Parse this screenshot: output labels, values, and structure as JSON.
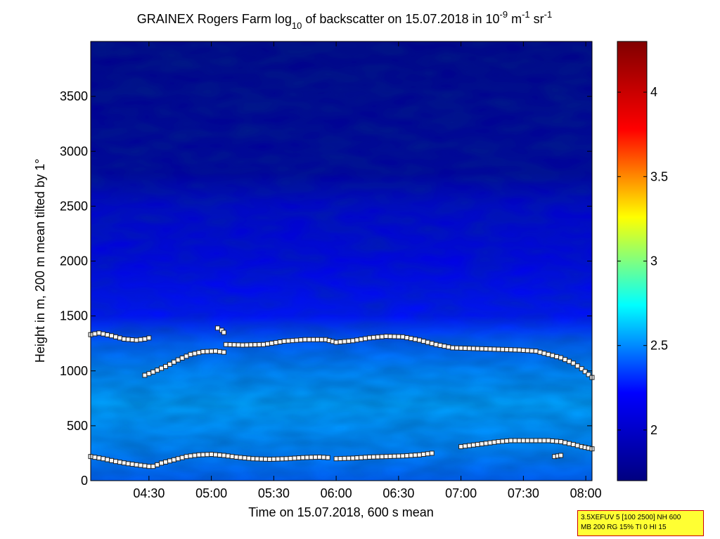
{
  "chart_data": {
    "type": "heatmap",
    "title_parts": {
      "prefix": "GRAINEX Rogers Farm log",
      "log_sub": "10",
      "middle": " of backscatter on 15.07.2018 in 10",
      "exp1": "-9",
      "m_unit": " m",
      "exp2": "-1",
      "sr_unit": " sr",
      "exp3": "-1"
    },
    "xlabel": "Time on 15.07.2018, 600 s mean",
    "ylabel": "Height in m, 200 m mean tilted by 1°",
    "x_unit": "minutes of day",
    "xlim": [
      242,
      483
    ],
    "ylim": [
      0,
      4000
    ],
    "x_ticks": [
      {
        "value": 270,
        "label": "04:30"
      },
      {
        "value": 300,
        "label": "05:00"
      },
      {
        "value": 330,
        "label": "05:30"
      },
      {
        "value": 360,
        "label": "06:00"
      },
      {
        "value": 390,
        "label": "06:30"
      },
      {
        "value": 420,
        "label": "07:00"
      },
      {
        "value": 450,
        "label": "07:30"
      },
      {
        "value": 480,
        "label": "08:00"
      }
    ],
    "y_ticks": [
      {
        "value": 0,
        "label": "0"
      },
      {
        "value": 500,
        "label": "500"
      },
      {
        "value": 1000,
        "label": "1000"
      },
      {
        "value": 1500,
        "label": "1500"
      },
      {
        "value": 2000,
        "label": "2000"
      },
      {
        "value": 2500,
        "label": "2500"
      },
      {
        "value": 3000,
        "label": "3000"
      },
      {
        "value": 3500,
        "label": "3500"
      }
    ],
    "colorbar": {
      "range": [
        1.7,
        4.3
      ],
      "ticks": [
        {
          "value": 2,
          "label": "2"
        },
        {
          "value": 2.5,
          "label": "2.5"
        },
        {
          "value": 3,
          "label": "3"
        },
        {
          "value": 3.5,
          "label": "3.5"
        },
        {
          "value": 4,
          "label": "4"
        }
      ],
      "colormap": [
        "#000080",
        "#0000ff",
        "#00ffff",
        "#ffff00",
        "#ff0000",
        "#800000"
      ]
    },
    "field_profile": [
      {
        "h": 0,
        "v": 2.42
      },
      {
        "h": 300,
        "v": 2.5
      },
      {
        "h": 700,
        "v": 2.55
      },
      {
        "h": 1000,
        "v": 2.5
      },
      {
        "h": 1250,
        "v": 2.42
      },
      {
        "h": 1500,
        "v": 2.25
      },
      {
        "h": 2000,
        "v": 2.12
      },
      {
        "h": 2500,
        "v": 2.02
      },
      {
        "h": 2800,
        "v": 1.82
      },
      {
        "h": 4000,
        "v": 1.74
      }
    ],
    "series": [
      {
        "name": "",
        "x": [
          242,
          246,
          252,
          258,
          264,
          268,
          270
        ],
        "y": [
          1330,
          1345,
          1320,
          1290,
          1280,
          1290,
          1300
        ]
      },
      {
        "name": "",
        "x": [
          268,
          272,
          278,
          284,
          290,
          296,
          302,
          306
        ],
        "y": [
          960,
          990,
          1040,
          1100,
          1150,
          1175,
          1180,
          1170
        ]
      },
      {
        "name": "",
        "x": [
          303,
          305,
          306
        ],
        "y": [
          1390,
          1370,
          1350
        ]
      },
      {
        "name": "",
        "x": [
          307,
          315,
          325,
          335,
          345,
          355,
          360,
          368,
          376,
          384,
          392,
          400,
          408,
          416,
          424,
          432,
          440,
          448,
          456,
          462,
          468,
          474,
          478,
          483
        ],
        "y": [
          1240,
          1235,
          1240,
          1270,
          1285,
          1285,
          1260,
          1275,
          1300,
          1315,
          1310,
          1280,
          1240,
          1210,
          1205,
          1200,
          1195,
          1190,
          1180,
          1150,
          1120,
          1070,
          1020,
          940
        ]
      },
      {
        "name": "",
        "x": [
          242,
          248,
          254,
          260,
          266,
          270
        ],
        "y": [
          220,
          200,
          175,
          155,
          140,
          130
        ]
      },
      {
        "name": "",
        "x": [
          272,
          276,
          282,
          288,
          294,
          300,
          306,
          312,
          320,
          328,
          336,
          344,
          352,
          356
        ],
        "y": [
          130,
          160,
          190,
          220,
          235,
          240,
          230,
          215,
          200,
          195,
          200,
          210,
          215,
          210
        ]
      },
      {
        "name": "",
        "x": [
          360,
          368,
          376,
          384,
          392,
          400,
          406
        ],
        "y": [
          200,
          205,
          215,
          220,
          225,
          235,
          250
        ]
      },
      {
        "name": "",
        "x": [
          420,
          426,
          432,
          438,
          444,
          450,
          456,
          462,
          468,
          474,
          478,
          483
        ],
        "y": [
          310,
          325,
          340,
          355,
          365,
          365,
          365,
          365,
          355,
          330,
          310,
          290
        ]
      },
      {
        "name": "",
        "x": [
          465,
          468
        ],
        "y": [
          220,
          230
        ]
      }
    ]
  },
  "info_box": {
    "line1": "3.5XEFUV 5 [100 2500] NH 600",
    "line2": "MB 200 RG 15% TI 0 HI 15"
  }
}
